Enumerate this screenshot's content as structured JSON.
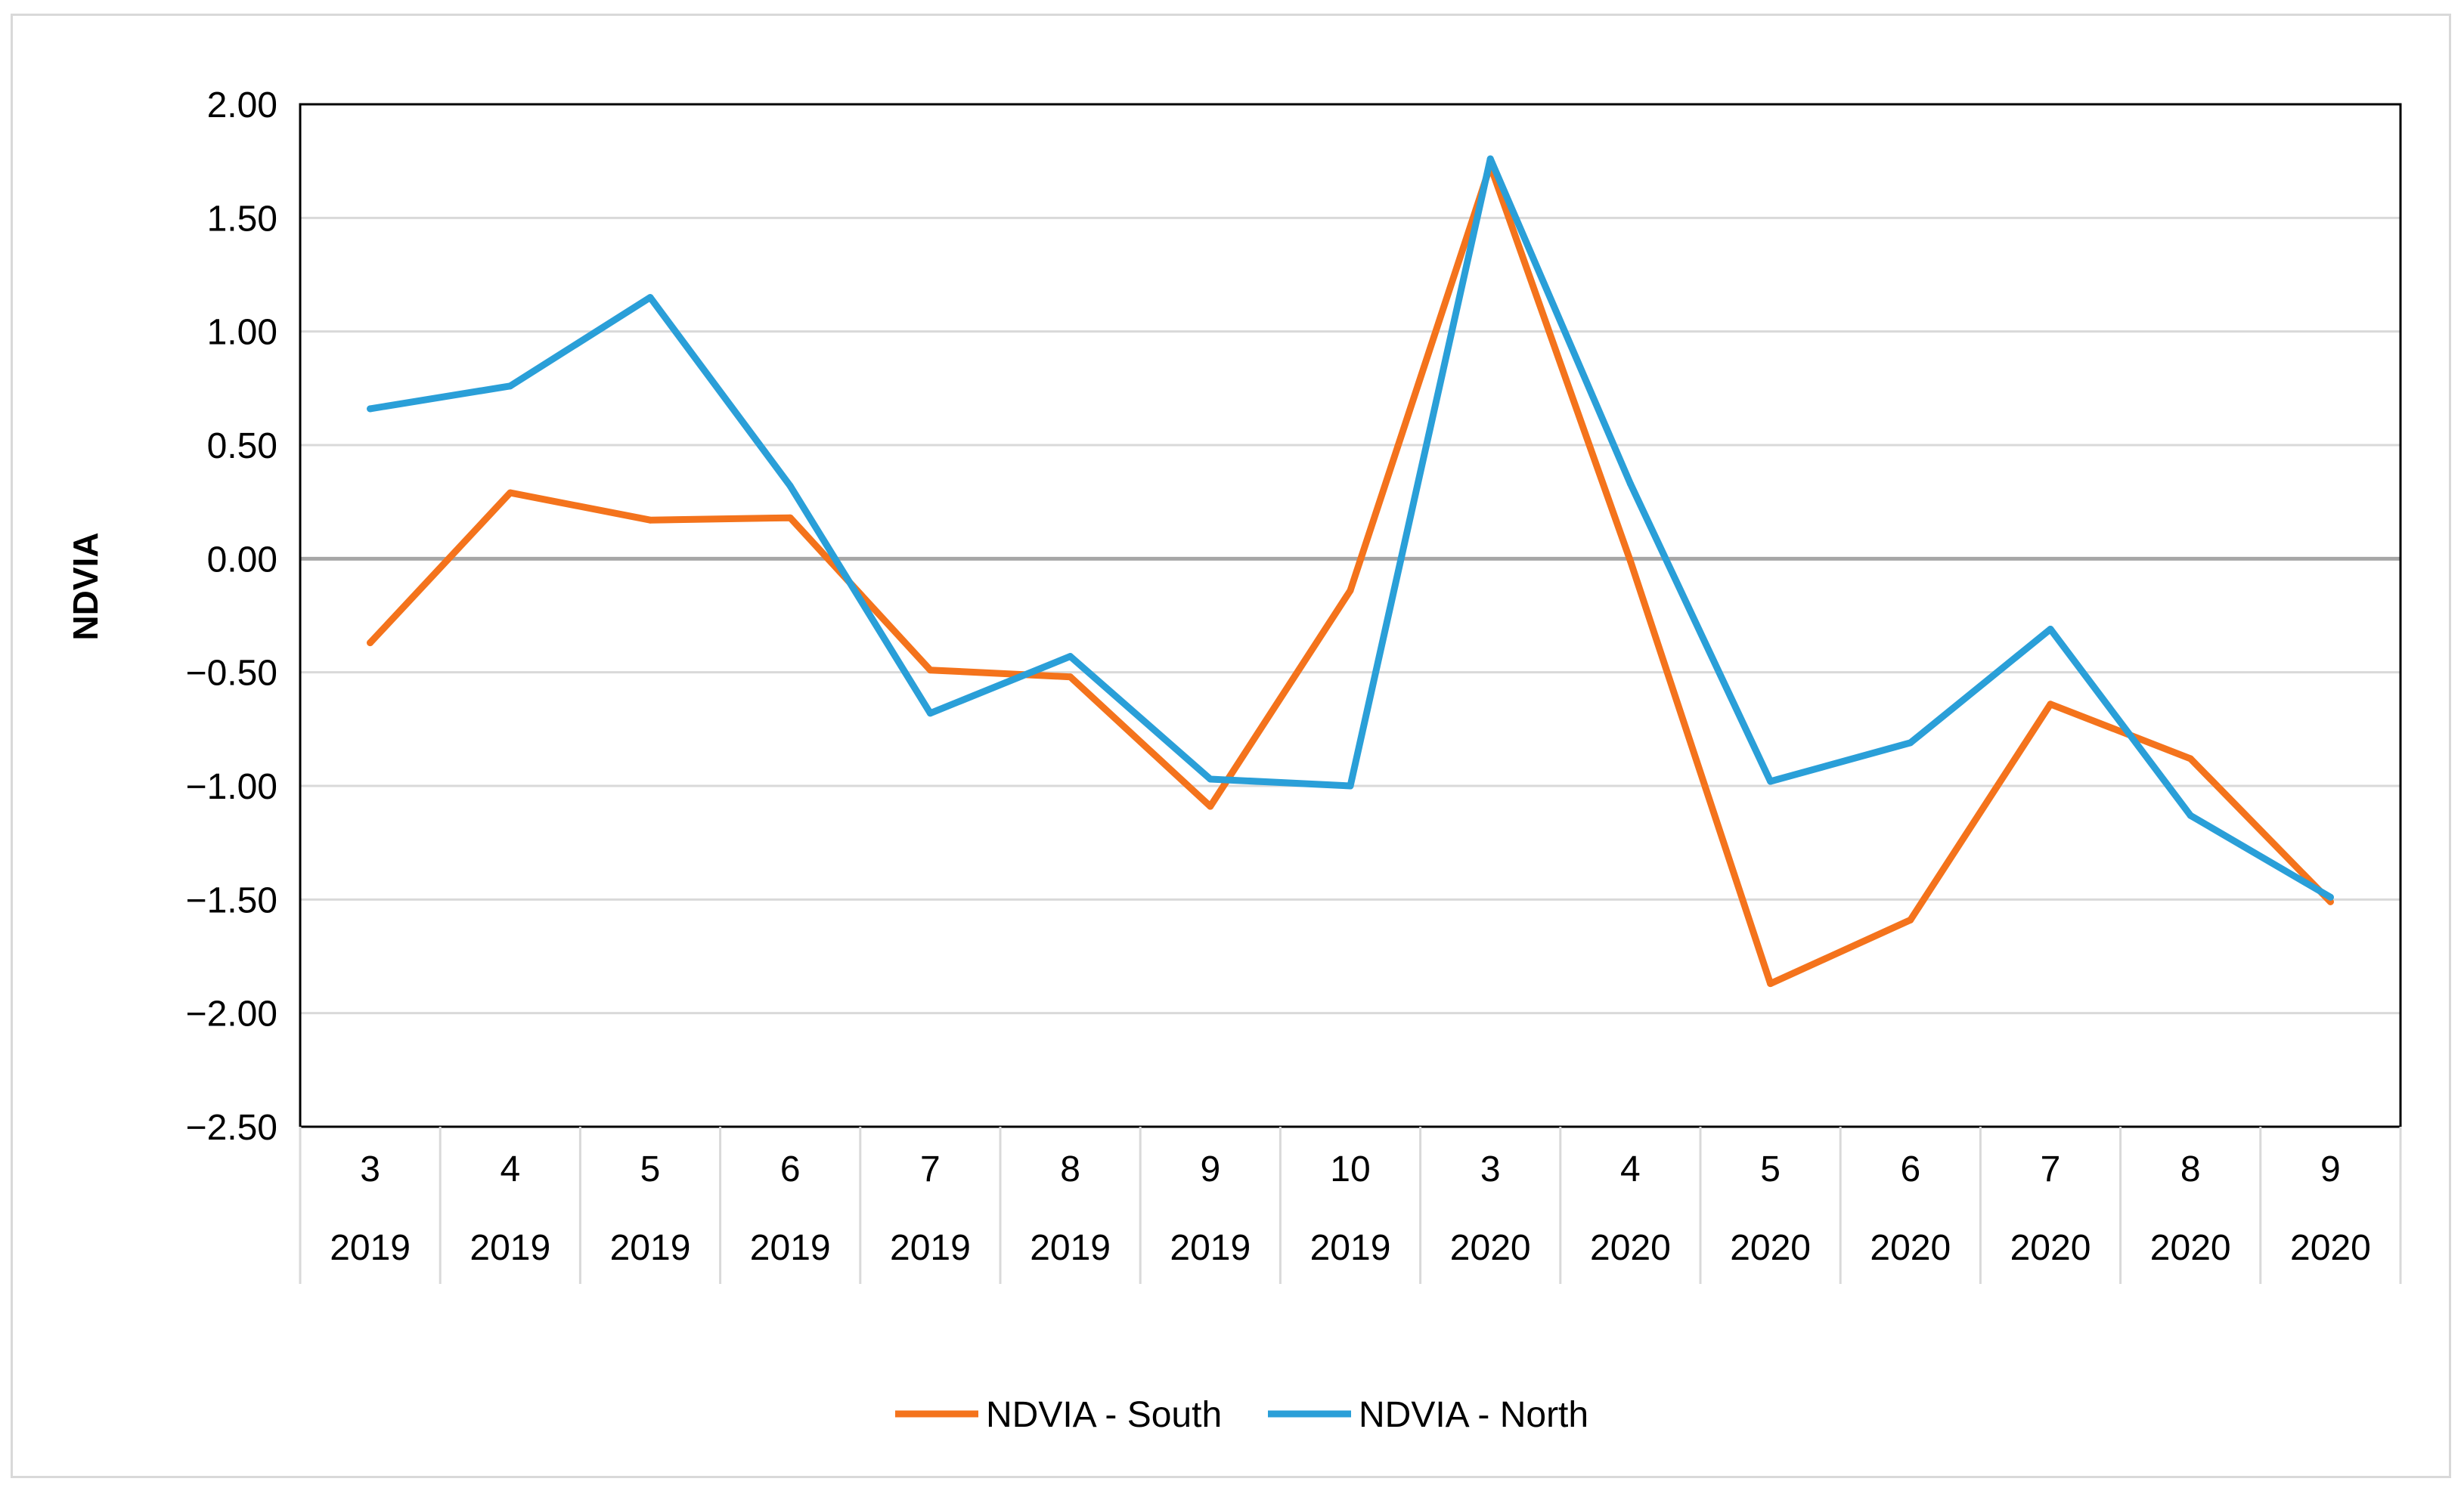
{
  "chart_data": {
    "type": "line",
    "title": "",
    "xlabel": "",
    "ylabel": "NDVIA",
    "ylim": [
      -2.5,
      2.0
    ],
    "yticks": [
      2.0,
      1.5,
      1.0,
      0.5,
      0.0,
      -0.5,
      -1.0,
      -1.5,
      -2.0,
      -2.5
    ],
    "ytick_labels": [
      "2.00",
      "1.50",
      "1.00",
      "0.50",
      "0.00",
      "−0.50",
      "−1.00",
      "−1.50",
      "−2.00",
      "−2.50"
    ],
    "grid": true,
    "legend_position": "bottom-center",
    "categories": [
      {
        "month": "3",
        "year": "2019"
      },
      {
        "month": "4",
        "year": "2019"
      },
      {
        "month": "5",
        "year": "2019"
      },
      {
        "month": "6",
        "year": "2019"
      },
      {
        "month": "7",
        "year": "2019"
      },
      {
        "month": "8",
        "year": "2019"
      },
      {
        "month": "9",
        "year": "2019"
      },
      {
        "month": "10",
        "year": "2019"
      },
      {
        "month": "3",
        "year": "2020"
      },
      {
        "month": "4",
        "year": "2020"
      },
      {
        "month": "5",
        "year": "2020"
      },
      {
        "month": "6",
        "year": "2020"
      },
      {
        "month": "7",
        "year": "2020"
      },
      {
        "month": "8",
        "year": "2020"
      },
      {
        "month": "9",
        "year": "2020"
      }
    ],
    "series": [
      {
        "name": "NDVIA - South",
        "color": "#f4731c",
        "values": [
          -0.37,
          0.29,
          0.17,
          0.18,
          -0.49,
          -0.52,
          -1.09,
          -0.14,
          1.73,
          -0.01,
          -1.87,
          -1.59,
          -0.64,
          -0.88,
          -1.51
        ]
      },
      {
        "name": "NDVIA - North",
        "color": "#2a9fd8",
        "values": [
          0.66,
          0.76,
          1.15,
          0.32,
          -0.68,
          -0.43,
          -0.97,
          -1.0,
          1.76,
          0.33,
          -0.98,
          -0.81,
          -0.31,
          -1.13,
          -1.49
        ]
      }
    ]
  }
}
